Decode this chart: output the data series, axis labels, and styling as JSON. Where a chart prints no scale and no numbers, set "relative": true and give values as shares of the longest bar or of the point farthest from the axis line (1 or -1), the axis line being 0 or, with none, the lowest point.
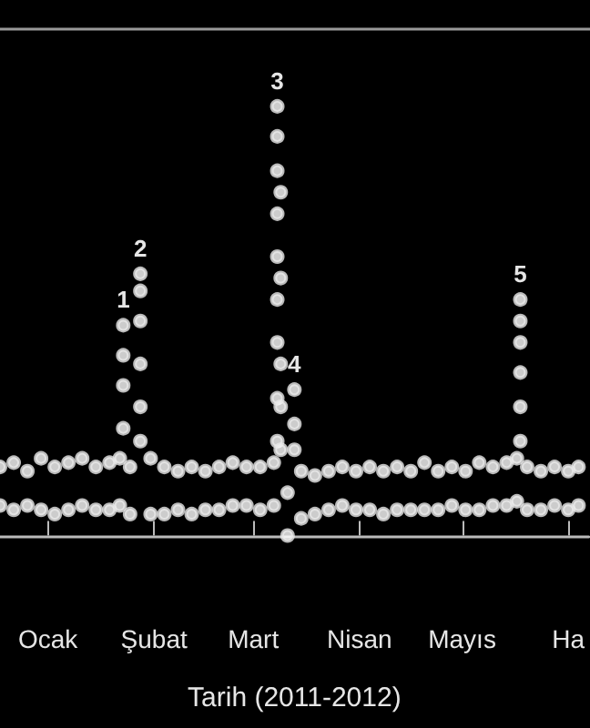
{
  "chart_data": {
    "type": "scatter",
    "relative": true,
    "xlabel": "Tarih (2011-2012)",
    "marker": "circle",
    "xlim": [
      "2011-12-18",
      "2012-06-07"
    ],
    "xticks": [
      {
        "value": "2012-01-01",
        "label": "Ocak"
      },
      {
        "value": "2012-02-01",
        "label": "Şubat"
      },
      {
        "value": "2012-03-01",
        "label": "Mart"
      },
      {
        "value": "2012-04-01",
        "label": "Nisan"
      },
      {
        "value": "2012-05-01",
        "label": "Mayıs"
      },
      {
        "value": "2012-06-01",
        "label": "Ha"
      }
    ],
    "annotations": [
      {
        "text": "1",
        "x": "2012-01-23",
        "y": 0.49
      },
      {
        "text": "2",
        "x": "2012-01-28",
        "y": 0.61
      },
      {
        "text": "3",
        "x": "2012-03-08",
        "y": 1.0
      },
      {
        "text": "4",
        "x": "2012-03-13",
        "y": 0.34
      },
      {
        "text": "5",
        "x": "2012-05-18",
        "y": 0.55
      }
    ],
    "series": [
      {
        "color": "#e8e8e8",
        "x": [
          "2011-12-18",
          "2011-12-18",
          "2011-12-22",
          "2011-12-22",
          "2011-12-26",
          "2011-12-26",
          "2011-12-30",
          "2011-12-30",
          "2012-01-03",
          "2012-01-03",
          "2012-01-07",
          "2012-01-07",
          "2012-01-11",
          "2012-01-11",
          "2012-01-15",
          "2012-01-15",
          "2012-01-19",
          "2012-01-19",
          "2012-01-22",
          "2012-01-22",
          "2012-01-23",
          "2012-01-23",
          "2012-01-23",
          "2012-01-23",
          "2012-01-25",
          "2012-01-25",
          "2012-01-28",
          "2012-01-28",
          "2012-01-28",
          "2012-01-28",
          "2012-01-28",
          "2012-01-28",
          "2012-01-31",
          "2012-01-31",
          "2012-02-04",
          "2012-02-04",
          "2012-02-08",
          "2012-02-08",
          "2012-02-12",
          "2012-02-12",
          "2012-02-16",
          "2012-02-16",
          "2012-02-20",
          "2012-02-20",
          "2012-02-24",
          "2012-02-24",
          "2012-02-28",
          "2012-02-28",
          "2012-03-03",
          "2012-03-03",
          "2012-03-07",
          "2012-03-07",
          "2012-03-08",
          "2012-03-08",
          "2012-03-08",
          "2012-03-08",
          "2012-03-08",
          "2012-03-08",
          "2012-03-08",
          "2012-03-08",
          "2012-03-08",
          "2012-03-09",
          "2012-03-09",
          "2012-03-09",
          "2012-03-09",
          "2012-03-09",
          "2012-03-11",
          "2012-03-11",
          "2012-03-13",
          "2012-03-13",
          "2012-03-13",
          "2012-03-15",
          "2012-03-15",
          "2012-03-19",
          "2012-03-19",
          "2012-03-23",
          "2012-03-23",
          "2012-03-27",
          "2012-03-27",
          "2012-03-31",
          "2012-03-31",
          "2012-04-04",
          "2012-04-04",
          "2012-04-08",
          "2012-04-08",
          "2012-04-12",
          "2012-04-12",
          "2012-04-16",
          "2012-04-16",
          "2012-04-20",
          "2012-04-20",
          "2012-04-24",
          "2012-04-24",
          "2012-04-28",
          "2012-04-28",
          "2012-05-02",
          "2012-05-02",
          "2012-05-06",
          "2012-05-06",
          "2012-05-10",
          "2012-05-10",
          "2012-05-14",
          "2012-05-14",
          "2012-05-17",
          "2012-05-17",
          "2012-05-18",
          "2012-05-18",
          "2012-05-18",
          "2012-05-18",
          "2012-05-18",
          "2012-05-18",
          "2012-05-20",
          "2012-05-20",
          "2012-05-24",
          "2012-05-24",
          "2012-05-28",
          "2012-05-28",
          "2012-06-01",
          "2012-06-01",
          "2012-06-04",
          "2012-06-04"
        ],
        "values": [
          0.16,
          0.07,
          0.17,
          0.06,
          0.15,
          0.07,
          0.18,
          0.06,
          0.16,
          0.05,
          0.17,
          0.06,
          0.18,
          0.07,
          0.16,
          0.06,
          0.17,
          0.06,
          0.18,
          0.07,
          0.25,
          0.35,
          0.42,
          0.49,
          0.16,
          0.05,
          0.22,
          0.3,
          0.4,
          0.5,
          0.57,
          0.61,
          0.18,
          0.05,
          0.16,
          0.05,
          0.15,
          0.06,
          0.16,
          0.05,
          0.15,
          0.06,
          0.16,
          0.06,
          0.17,
          0.07,
          0.16,
          0.07,
          0.16,
          0.06,
          0.17,
          0.07,
          0.22,
          0.32,
          0.45,
          0.55,
          0.65,
          0.75,
          0.85,
          0.93,
          1.0,
          0.2,
          0.3,
          0.4,
          0.6,
          0.8,
          0.1,
          0.0,
          0.2,
          0.26,
          0.34,
          0.15,
          0.04,
          0.14,
          0.05,
          0.15,
          0.06,
          0.16,
          0.07,
          0.15,
          0.06,
          0.16,
          0.06,
          0.15,
          0.05,
          0.16,
          0.06,
          0.15,
          0.06,
          0.17,
          0.06,
          0.15,
          0.06,
          0.16,
          0.07,
          0.15,
          0.06,
          0.17,
          0.06,
          0.16,
          0.07,
          0.17,
          0.07,
          0.18,
          0.08,
          0.22,
          0.3,
          0.38,
          0.45,
          0.5,
          0.55,
          0.16,
          0.06,
          0.15,
          0.06,
          0.16,
          0.07,
          0.15,
          0.06,
          0.16,
          0.07
        ]
      }
    ]
  }
}
